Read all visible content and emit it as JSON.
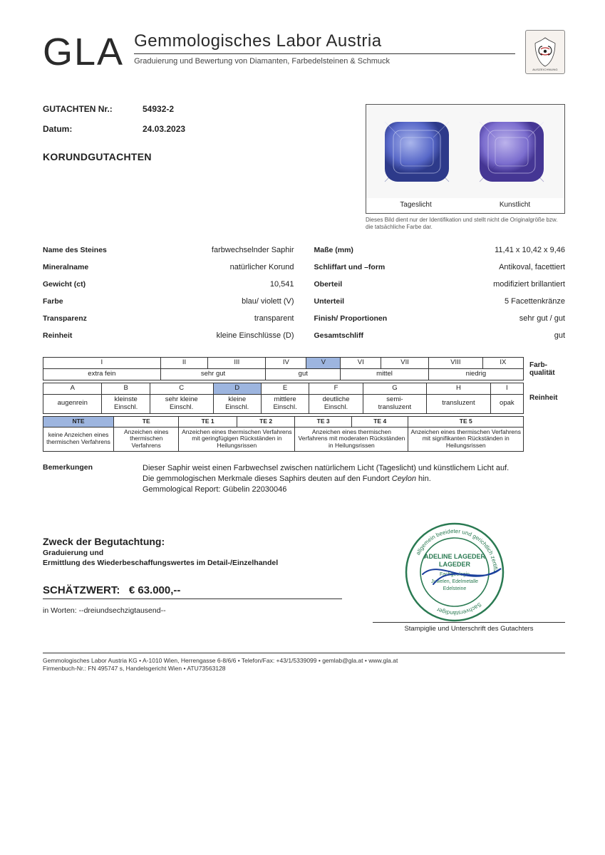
{
  "header": {
    "logo": "GLA",
    "title": "Gemmologisches Labor Austria",
    "subtitle": "Graduierung und Bewertung von Diamanten, Farbedelsteinen & Schmuck",
    "seal_caption": "AUSZEICHNUNG"
  },
  "meta": {
    "report_label": "GUTACHTEN Nr.:",
    "report_no": "54932-2",
    "date_label": "Datum:",
    "date": "24.03.2023",
    "doc_title": "KORUNDGUTACHTEN"
  },
  "photos": {
    "left_label": "Tageslicht",
    "right_label": "Kunstlicht",
    "note": "Dieses Bild dient nur der Identifikation und stellt nicht die Originalgröße bzw. die tatsächliche Farbe dar.",
    "colors": {
      "daylight": "#5868c8",
      "artificial": "#7b6dce",
      "bg": "#f2f2f4"
    }
  },
  "data": {
    "name_label": "Name des Steines",
    "name": "farbwechselnder Saphir",
    "mineral_label": "Mineralname",
    "mineral": "natürlicher Korund",
    "weight_label": "Gewicht (ct)",
    "weight": "10,541",
    "color_label": "Farbe",
    "color": "blau/ violett (V)",
    "trans_label": "Transparenz",
    "trans": "transparent",
    "clarity_label": "Reinheit",
    "clarity": "kleine Einschlüsse (D)",
    "dim_label": "Maße (mm)",
    "dim": "11,41 x 10,42 x 9,46",
    "cut_label": "Schliffart und –form",
    "cut": "Antikoval, facettiert",
    "crown_label": "Oberteil",
    "crown": "modifiziert brillantiert",
    "pav_label": "Unterteil",
    "pav": "5 Facettenkränze",
    "finish_label": "Finish/ Proportionen",
    "finish": "sehr gut / gut",
    "overall_label": "Gesamtschliff",
    "overall": "gut"
  },
  "grading": {
    "color_row1": [
      "I",
      "II",
      "III",
      "IV",
      "V",
      "VI",
      "VII",
      "VIII",
      "IX"
    ],
    "color_row2_spans": [
      {
        "txt": "extra fein",
        "span": 1
      },
      {
        "txt": "sehr gut",
        "span": 2
      },
      {
        "txt": "gut",
        "span": 2
      },
      {
        "txt": "mittel",
        "span": 2
      },
      {
        "txt": "niedrig",
        "span": 2
      }
    ],
    "color_side": "Farb-qualität",
    "clar_row1": [
      "A",
      "B",
      "C",
      "D",
      "E",
      "F",
      "G",
      "H",
      "I"
    ],
    "clar_row2": [
      "augenrein",
      "kleinste Einschl.",
      "sehr kleine Einschl.",
      "kleine Einschl.",
      "mittlere Einschl.",
      "deutliche Einschl.",
      "semi-transluzent",
      "transluzent",
      "opak"
    ],
    "clar_side": "Reinheit",
    "te_head": [
      "NTE",
      "TE",
      "TE 1",
      "TE 2",
      "TE 3",
      "TE 4",
      "TE 5"
    ],
    "te_body_spans": [
      {
        "txt": "keine Anzeichen eines thermischen Verfahrens",
        "span": 1
      },
      {
        "txt": "Anzeichen eines thermischen Verfahrens",
        "span": 1
      },
      {
        "txt": "Anzeichen eines thermischen Verfahrens mit geringfügigen Rückständen in Heilungsrissen",
        "span": 2
      },
      {
        "txt": "Anzeichen eines thermischen Verfahrens mit moderaten Rückständen in Heilungsrissen",
        "span": 2
      },
      {
        "txt": "Anzeichen eines thermischen Verfahrens mit signifikanten Rückständen in Heilungsrissen",
        "span": 1
      }
    ],
    "highlight": {
      "color_col": 4,
      "clar_col": 3,
      "te_col": 0,
      "bg": "#9db5df"
    }
  },
  "remarks": {
    "label": "Bemerkungen",
    "line1": "Dieser Saphir weist einen Farbwechsel zwischen natürlichem Licht (Tageslicht) und künstlichem Licht auf.",
    "line2": "Die gemmologischen Merkmale dieses Saphirs deuten auf den Fundort Ceylon hin.",
    "line3": "Gemmological Report: Gübelin 22030046"
  },
  "purpose": {
    "title": "Zweck der Begutachtung:",
    "sub": "Graduierung und\nErmittlung des Wiederbeschaffungswertes im Detail-/Einzelhandel"
  },
  "valuation": {
    "label": "SCHÄTZWERT:",
    "value": "€ 63.000,--",
    "words_label": "in Worten:",
    "words": "--dreiundsechzigtausend--"
  },
  "signature": {
    "name": "ADELINE LAGEDER",
    "role1": "Fachgeologin",
    "role2": "Juwelen, Edelmetalle",
    "role3": "Edelsteine",
    "stamp_color": "#2a7a52",
    "sig_color": "#1a3f9c",
    "line_label": "Stampiglie und Unterschrift des Gutachters"
  },
  "footer": {
    "line1": "Gemmologisches Labor Austria KG • A-1010 Wien, Herrengasse 6-8/6/6 • Telefon/Fax: +43/1/5339099 • gemlab@gla.at • www.gla.at",
    "line2": "Firmenbuch-Nr.: FN 495747 s, Handelsgericht Wien • ATU73563128"
  }
}
